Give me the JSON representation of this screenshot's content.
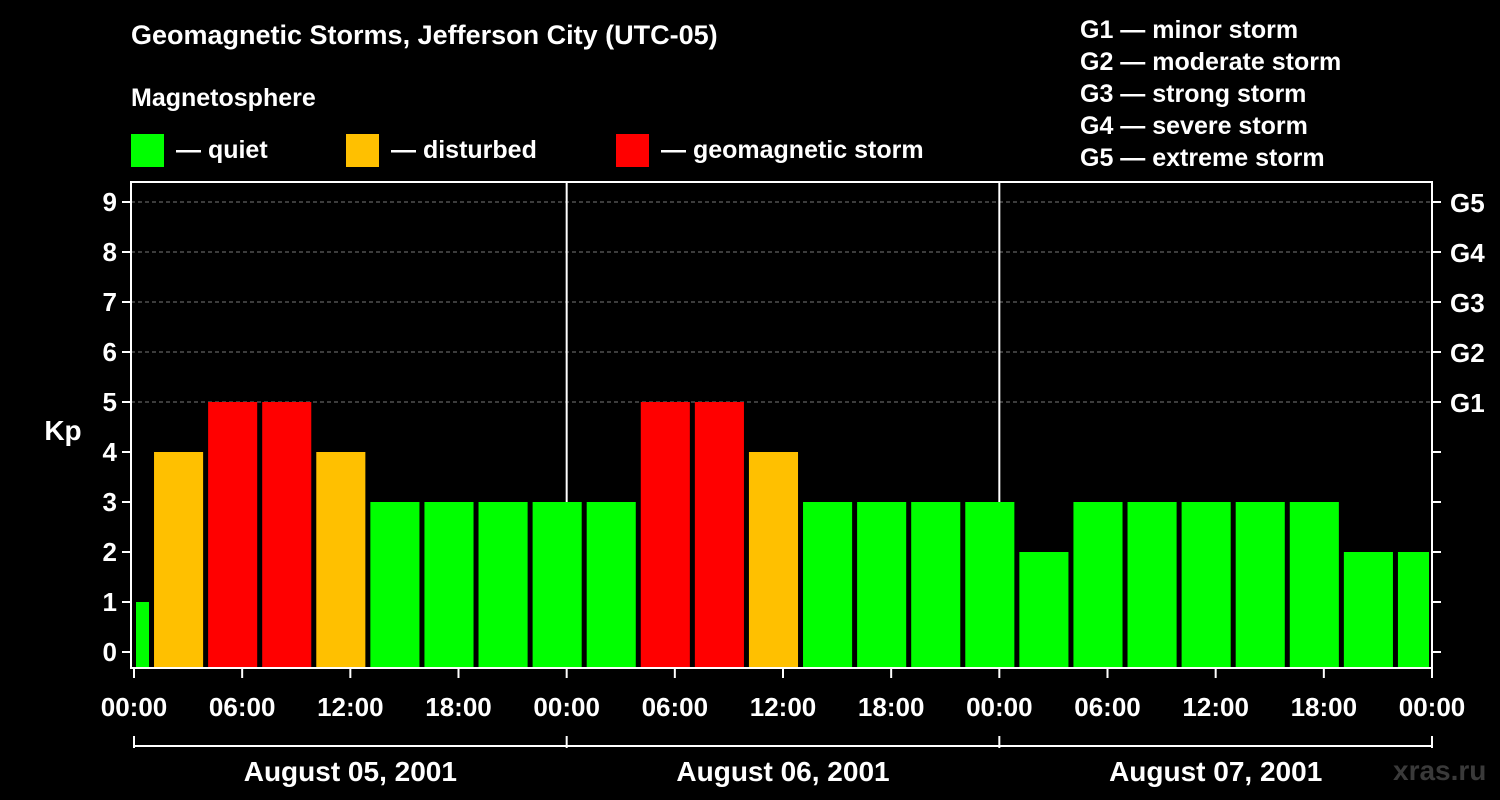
{
  "chart_data": {
    "type": "bar",
    "title": "Geomagnetic Storms, Jefferson City (UTC-05)",
    "subtitle": "Magnetosphere",
    "legend": [
      {
        "label": "— quiet",
        "color": "#00ff00"
      },
      {
        "label": "— disturbed",
        "color": "#ffc000"
      },
      {
        "label": "— geomagnetic storm",
        "color": "#ff0000"
      }
    ],
    "g_scale": [
      "G1 — minor storm",
      "G2 — moderate storm",
      "G3 — strong storm",
      "G4 — severe storm",
      "G5 — extreme storm"
    ],
    "ylabel": "Kp",
    "ylim": [
      0,
      9
    ],
    "y_ticks": [
      "0",
      "1",
      "2",
      "3",
      "4",
      "5",
      "6",
      "7",
      "8",
      "9"
    ],
    "right_ticks": [
      {
        "value": 5,
        "label": "G1"
      },
      {
        "value": 6,
        "label": "G2"
      },
      {
        "value": 7,
        "label": "G3"
      },
      {
        "value": 8,
        "label": "G4"
      },
      {
        "value": 9,
        "label": "G5"
      }
    ],
    "x_ticks": [
      "00:00",
      "06:00",
      "12:00",
      "18:00",
      "00:00",
      "06:00",
      "12:00",
      "18:00",
      "00:00",
      "06:00",
      "12:00",
      "18:00",
      "00:00"
    ],
    "dates": [
      "August 05, 2001",
      "August 06, 2001",
      "August 07, 2001"
    ],
    "bars": [
      {
        "start": "2001-08-05 00:00",
        "kp": 1,
        "level": "quiet"
      },
      {
        "start": "2001-08-05 01:00",
        "kp": 4,
        "level": "disturbed"
      },
      {
        "start": "2001-08-05 04:00",
        "kp": 5,
        "level": "storm"
      },
      {
        "start": "2001-08-05 07:00",
        "kp": 5,
        "level": "storm"
      },
      {
        "start": "2001-08-05 10:00",
        "kp": 4,
        "level": "disturbed"
      },
      {
        "start": "2001-08-05 13:00",
        "kp": 3,
        "level": "quiet"
      },
      {
        "start": "2001-08-05 16:00",
        "kp": 3,
        "level": "quiet"
      },
      {
        "start": "2001-08-05 19:00",
        "kp": 3,
        "level": "quiet"
      },
      {
        "start": "2001-08-05 22:00",
        "kp": 3,
        "level": "quiet"
      },
      {
        "start": "2001-08-06 01:00",
        "kp": 3,
        "level": "quiet"
      },
      {
        "start": "2001-08-06 04:00",
        "kp": 5,
        "level": "storm"
      },
      {
        "start": "2001-08-06 07:00",
        "kp": 5,
        "level": "storm"
      },
      {
        "start": "2001-08-06 10:00",
        "kp": 4,
        "level": "disturbed"
      },
      {
        "start": "2001-08-06 13:00",
        "kp": 3,
        "level": "quiet"
      },
      {
        "start": "2001-08-06 16:00",
        "kp": 3,
        "level": "quiet"
      },
      {
        "start": "2001-08-06 19:00",
        "kp": 3,
        "level": "quiet"
      },
      {
        "start": "2001-08-06 22:00",
        "kp": 3,
        "level": "quiet"
      },
      {
        "start": "2001-08-07 01:00",
        "kp": 2,
        "level": "quiet"
      },
      {
        "start": "2001-08-07 04:00",
        "kp": 3,
        "level": "quiet"
      },
      {
        "start": "2001-08-07 07:00",
        "kp": 3,
        "level": "quiet"
      },
      {
        "start": "2001-08-07 10:00",
        "kp": 3,
        "level": "quiet"
      },
      {
        "start": "2001-08-07 13:00",
        "kp": 3,
        "level": "quiet"
      },
      {
        "start": "2001-08-07 16:00",
        "kp": 3,
        "level": "quiet"
      },
      {
        "start": "2001-08-07 19:00",
        "kp": 2,
        "level": "quiet"
      },
      {
        "start": "2001-08-07 22:00",
        "kp": 2,
        "level": "quiet"
      }
    ],
    "level_colors": {
      "quiet": "#00ff00",
      "disturbed": "#ffc000",
      "storm": "#ff0000"
    },
    "grid": true
  },
  "watermark": "xras.ru"
}
